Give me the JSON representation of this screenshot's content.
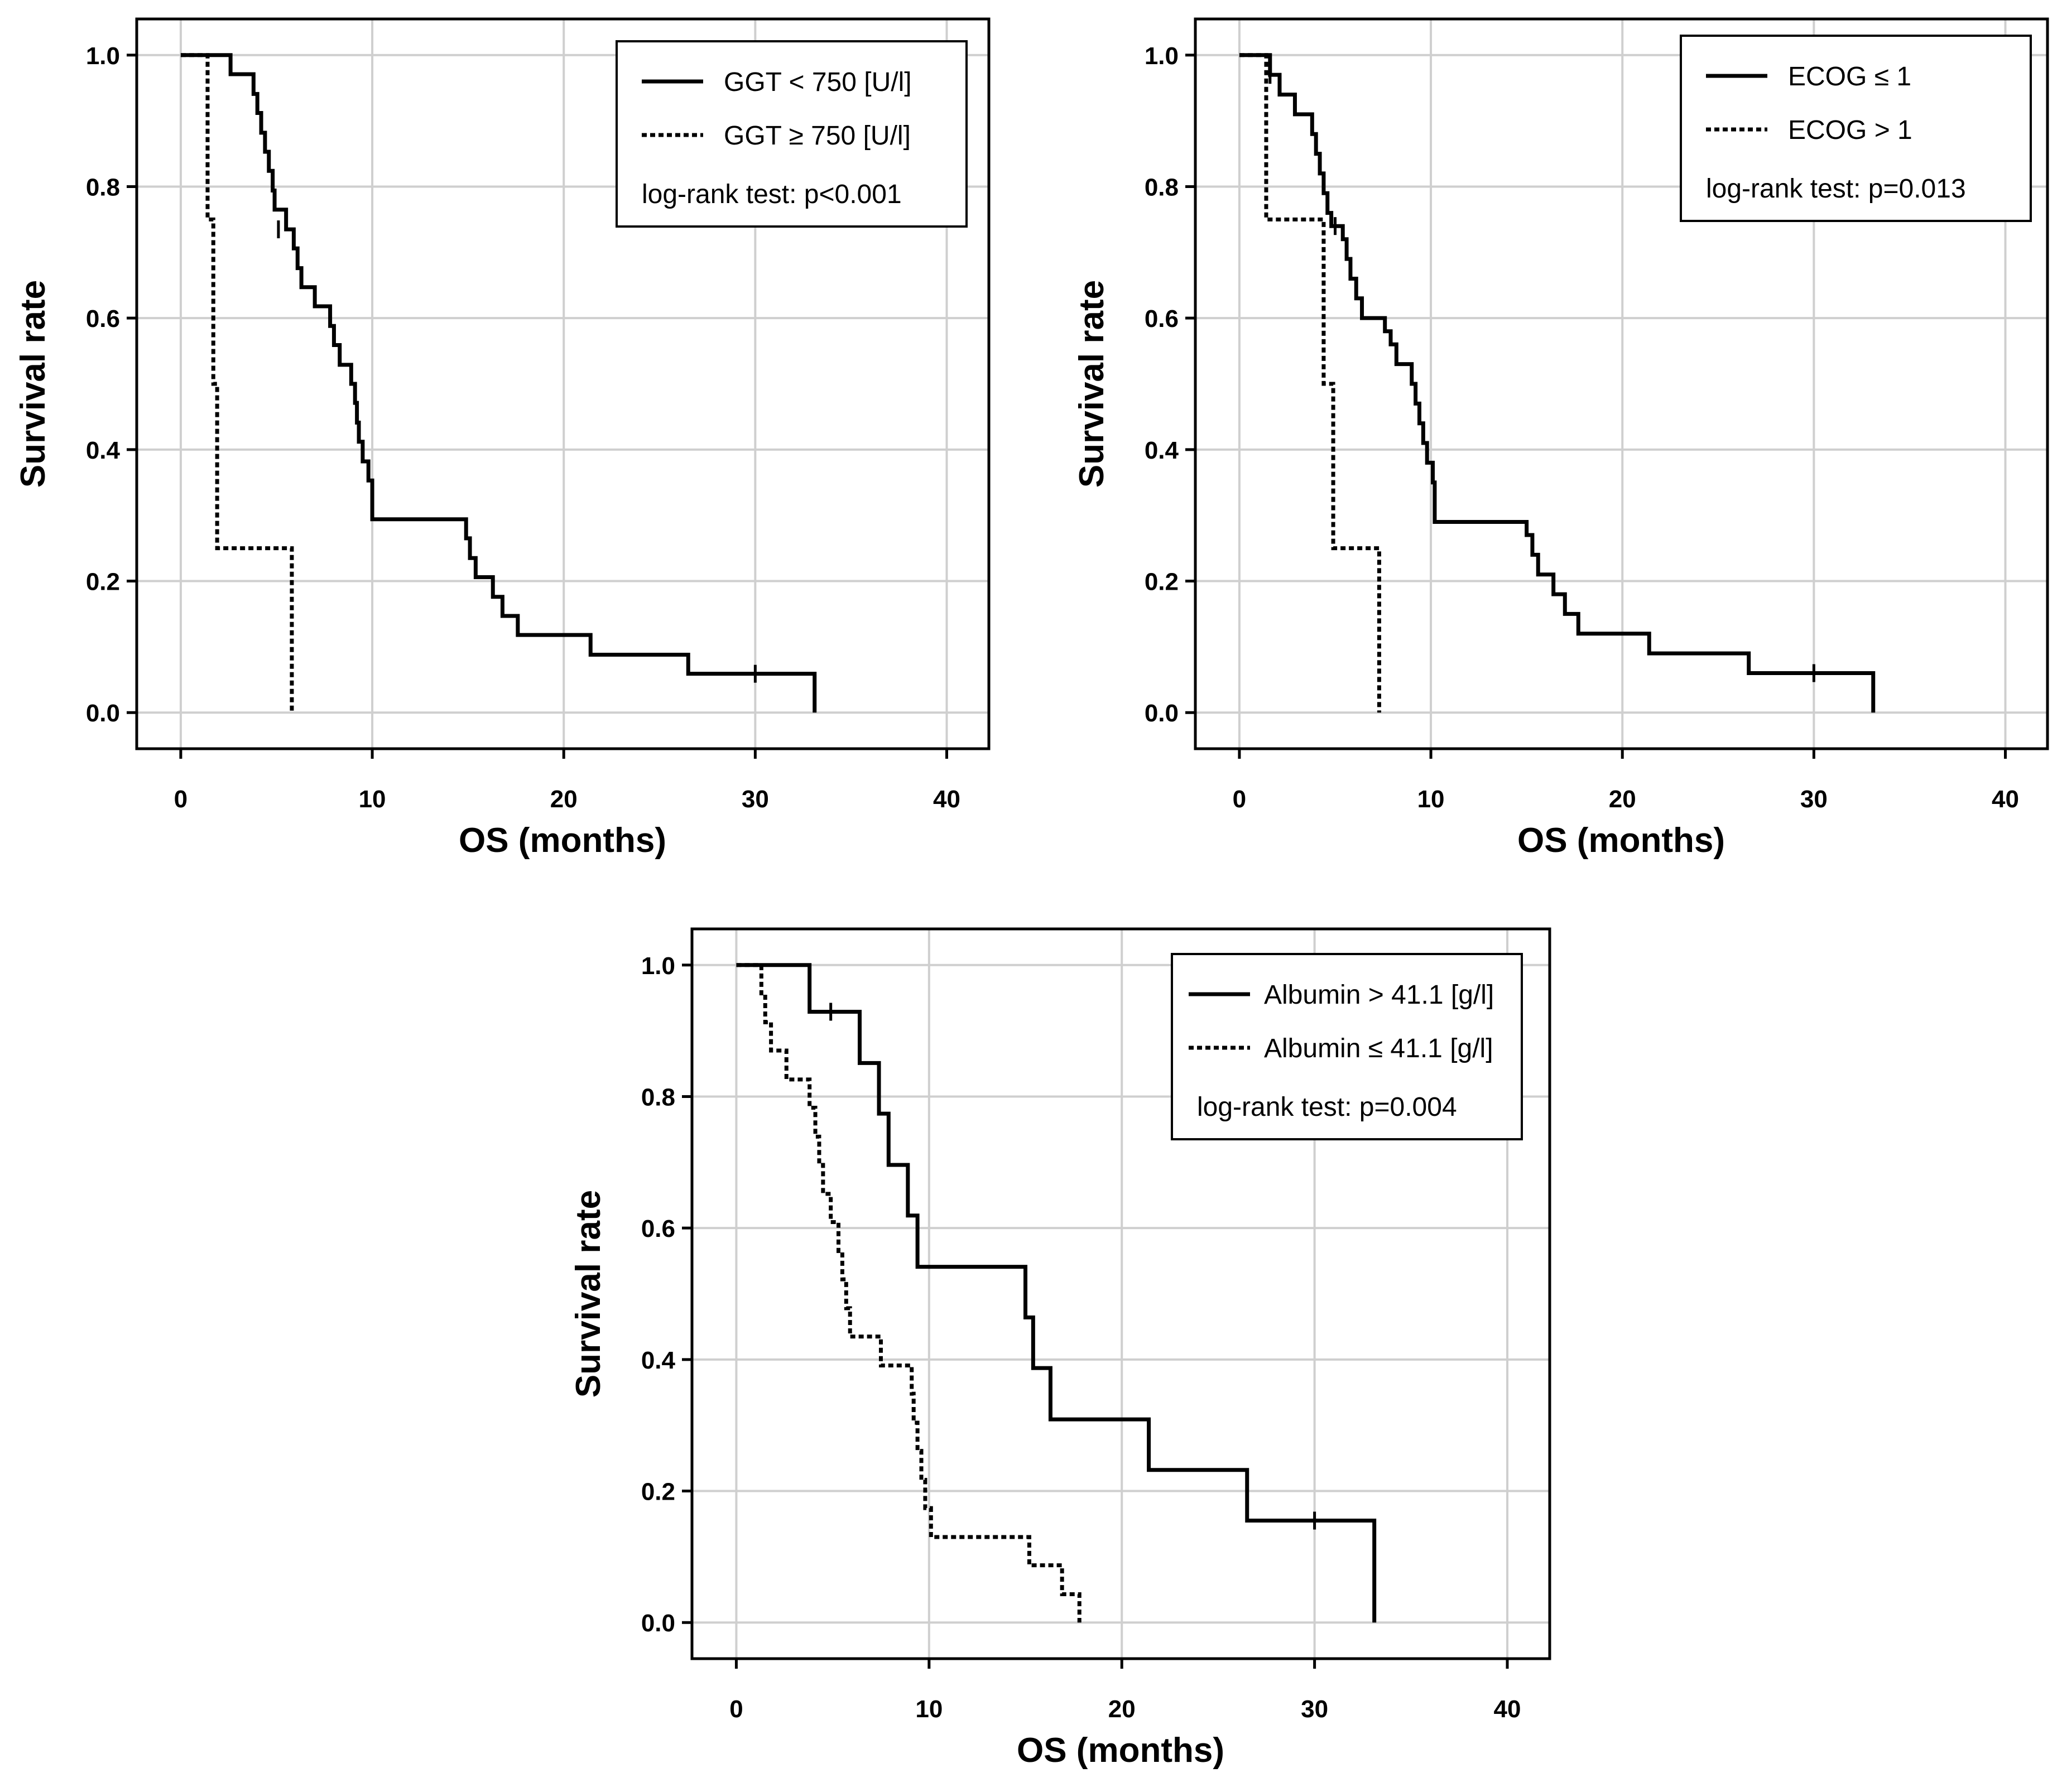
{
  "chart_data": [
    {
      "type": "line",
      "subtype": "kaplan-meier",
      "xlabel": "OS (months)",
      "ylabel": "Survival rate",
      "xlim": [
        -2.3,
        42.2
      ],
      "ylim": [
        -0.055,
        1.055
      ],
      "xticks": [
        0,
        10,
        20,
        30,
        40
      ],
      "yticks": [
        0.0,
        0.2,
        0.4,
        0.6,
        0.8,
        1.0
      ],
      "ytick_labels": [
        "0.0",
        "0.2",
        "0.4",
        "0.6",
        "0.8",
        "1.0"
      ],
      "grid": true,
      "legend_position": "top-right",
      "annotation": "log-rank test: p<0.001",
      "series": [
        {
          "name": "GGT < 750 [U/l]",
          "style": "solid",
          "steps": [
            [
              0,
              1.0
            ],
            [
              2.6,
              0.971
            ],
            [
              3.8,
              0.941
            ],
            [
              4.0,
              0.912
            ],
            [
              4.2,
              0.882
            ],
            [
              4.4,
              0.853
            ],
            [
              4.6,
              0.824
            ],
            [
              4.8,
              0.794
            ],
            [
              4.9,
              0.765
            ],
            [
              5.5,
              0.735
            ],
            [
              5.9,
              0.706
            ],
            [
              6.1,
              0.676
            ],
            [
              6.3,
              0.647
            ],
            [
              7.0,
              0.618
            ],
            [
              7.2,
              0.618
            ],
            [
              7.3,
              0.618
            ],
            [
              7.8,
              0.588
            ],
            [
              8.0,
              0.559
            ],
            [
              8.3,
              0.529
            ],
            [
              8.9,
              0.5
            ],
            [
              9.1,
              0.471
            ],
            [
              9.2,
              0.441
            ],
            [
              9.3,
              0.412
            ],
            [
              9.5,
              0.382
            ],
            [
              9.8,
              0.353
            ],
            [
              10.0,
              0.294
            ],
            [
              14.9,
              0.265
            ],
            [
              15.1,
              0.235
            ],
            [
              15.4,
              0.206
            ],
            [
              16.3,
              0.176
            ],
            [
              16.8,
              0.147
            ],
            [
              17.6,
              0.118
            ],
            [
              21.4,
              0.088
            ],
            [
              26.5,
              0.059
            ],
            [
              33.1,
              0.0
            ]
          ],
          "end": 33.1,
          "censor_marks": [
            [
              5.1,
              0.735
            ],
            [
              30.0,
              0.059
            ]
          ]
        },
        {
          "name": "GGT ≥ 750 [U/l]",
          "style": "dotted",
          "steps": [
            [
              0,
              1.0
            ],
            [
              1.4,
              0.75
            ],
            [
              1.7,
              0.5
            ],
            [
              1.9,
              0.25
            ],
            [
              5.8,
              0.0
            ]
          ],
          "end": 5.8,
          "censor_marks": []
        }
      ]
    },
    {
      "type": "line",
      "subtype": "kaplan-meier",
      "xlabel": "OS (months)",
      "ylabel": "Survival rate",
      "xlim": [
        -2.3,
        42.2
      ],
      "ylim": [
        -0.055,
        1.055
      ],
      "xticks": [
        0,
        10,
        20,
        30,
        40
      ],
      "yticks": [
        0.0,
        0.2,
        0.4,
        0.6,
        0.8,
        1.0
      ],
      "ytick_labels": [
        "0.0",
        "0.2",
        "0.4",
        "0.6",
        "0.8",
        "1.0"
      ],
      "grid": true,
      "legend_position": "top-right",
      "annotation": "log-rank test: p=0.013",
      "series": [
        {
          "name": "ECOG ≤ 1",
          "style": "solid",
          "steps": [
            [
              0,
              1.0
            ],
            [
              1.6,
              0.97
            ],
            [
              2.1,
              0.94
            ],
            [
              2.9,
              0.91
            ],
            [
              3.8,
              0.88
            ],
            [
              4.0,
              0.85
            ],
            [
              4.2,
              0.82
            ],
            [
              4.4,
              0.79
            ],
            [
              4.6,
              0.76
            ],
            [
              4.8,
              0.74
            ],
            [
              5.4,
              0.72
            ],
            [
              5.6,
              0.69
            ],
            [
              5.8,
              0.66
            ],
            [
              6.1,
              0.63
            ],
            [
              6.4,
              0.6
            ],
            [
              7.6,
              0.58
            ],
            [
              7.9,
              0.56
            ],
            [
              8.2,
              0.53
            ],
            [
              9.0,
              0.5
            ],
            [
              9.2,
              0.47
            ],
            [
              9.4,
              0.44
            ],
            [
              9.6,
              0.41
            ],
            [
              9.8,
              0.38
            ],
            [
              10.1,
              0.35
            ],
            [
              10.2,
              0.29
            ],
            [
              15.0,
              0.27
            ],
            [
              15.3,
              0.24
            ],
            [
              15.6,
              0.21
            ],
            [
              16.4,
              0.18
            ],
            [
              17.0,
              0.15
            ],
            [
              17.7,
              0.12
            ],
            [
              21.4,
              0.09
            ],
            [
              26.6,
              0.06
            ],
            [
              33.1,
              0.0
            ]
          ],
          "end": 33.1,
          "censor_marks": [
            [
              1.6,
              0.97
            ],
            [
              5.0,
              0.74
            ],
            [
              30.0,
              0.06
            ]
          ]
        },
        {
          "name": "ECOG > 1",
          "style": "dotted",
          "steps": [
            [
              0,
              1.0
            ],
            [
              1.4,
              0.75
            ],
            [
              4.4,
              0.5
            ],
            [
              4.9,
              0.25
            ],
            [
              7.3,
              0.0
            ]
          ],
          "end": 7.3,
          "censor_marks": []
        }
      ]
    },
    {
      "type": "line",
      "subtype": "kaplan-meier",
      "xlabel": "OS (months)",
      "ylabel": "Survival rate",
      "xlim": [
        -2.3,
        42.2
      ],
      "ylim": [
        -0.055,
        1.055
      ],
      "xticks": [
        0,
        10,
        20,
        30,
        40
      ],
      "yticks": [
        0.0,
        0.2,
        0.4,
        0.6,
        0.8,
        1.0
      ],
      "ytick_labels": [
        "0.0",
        "0.2",
        "0.4",
        "0.6",
        "0.8",
        "1.0"
      ],
      "grid": true,
      "legend_position": "top-right",
      "annotation": "log-rank test: p=0.004",
      "series": [
        {
          "name": "Albumin > 41.1 [g/l]",
          "style": "solid",
          "steps": [
            [
              0,
              1.0
            ],
            [
              3.8,
              0.929
            ],
            [
              6.4,
              0.851
            ],
            [
              7.4,
              0.774
            ],
            [
              7.9,
              0.696
            ],
            [
              8.9,
              0.619
            ],
            [
              9.4,
              0.541
            ],
            [
              15.0,
              0.464
            ],
            [
              15.4,
              0.387
            ],
            [
              16.3,
              0.309
            ],
            [
              21.4,
              0.232
            ],
            [
              26.5,
              0.155
            ],
            [
              33.1,
              0.0
            ]
          ],
          "end": 33.1,
          "censor_marks": [
            [
              4.9,
              0.929
            ],
            [
              30.0,
              0.155
            ]
          ]
        },
        {
          "name": "Albumin ≤ 41.1 [g/l]",
          "style": "dotted",
          "steps": [
            [
              0,
              1.0
            ],
            [
              1.3,
              0.957
            ],
            [
              1.5,
              0.913
            ],
            [
              1.8,
              0.87
            ],
            [
              2.6,
              0.826
            ],
            [
              3.8,
              0.783
            ],
            [
              4.1,
              0.739
            ],
            [
              4.3,
              0.696
            ],
            [
              4.5,
              0.652
            ],
            [
              4.9,
              0.609
            ],
            [
              5.3,
              0.565
            ],
            [
              5.5,
              0.522
            ],
            [
              5.7,
              0.478
            ],
            [
              5.9,
              0.435
            ],
            [
              7.5,
              0.391
            ],
            [
              9.1,
              0.348
            ],
            [
              9.2,
              0.304
            ],
            [
              9.4,
              0.261
            ],
            [
              9.6,
              0.217
            ],
            [
              9.8,
              0.174
            ],
            [
              10.1,
              0.13
            ],
            [
              15.2,
              0.087
            ],
            [
              16.9,
              0.043
            ],
            [
              17.8,
              0.0
            ]
          ],
          "end": 17.8,
          "censor_marks": []
        }
      ]
    }
  ]
}
